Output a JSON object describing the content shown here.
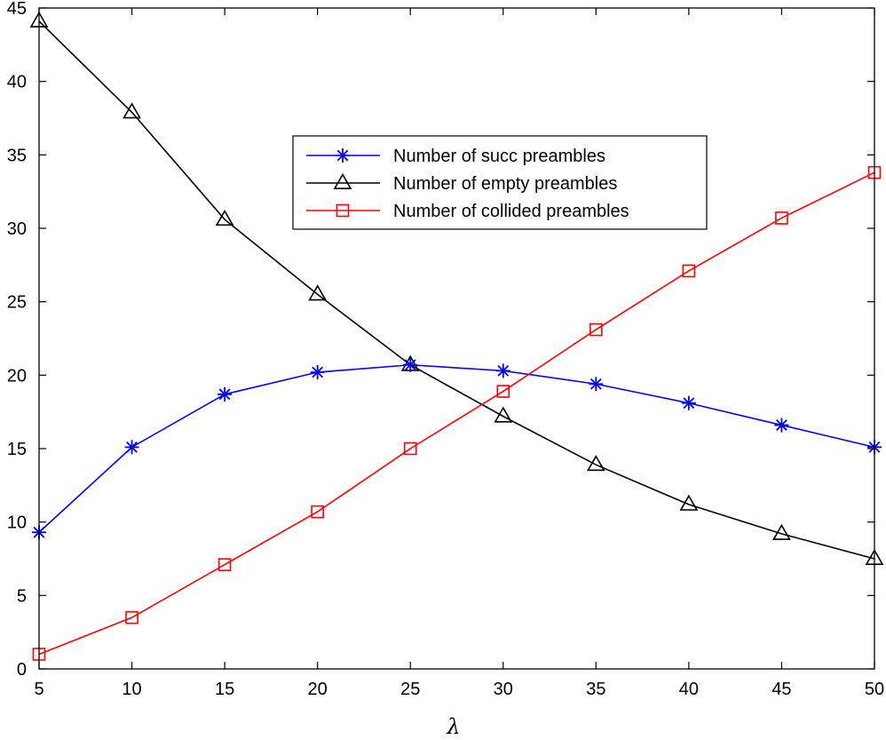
{
  "chart_data": {
    "type": "line",
    "title": "",
    "xlabel": "λ",
    "ylabel": "",
    "xlim": [
      5,
      50
    ],
    "ylim": [
      0,
      45
    ],
    "xticks": [
      5,
      10,
      15,
      20,
      25,
      30,
      35,
      40,
      45,
      50
    ],
    "yticks": [
      0,
      5,
      10,
      15,
      20,
      25,
      30,
      35,
      40,
      45
    ],
    "grid": false,
    "legend_position": "upper-center",
    "x": [
      5,
      10,
      15,
      20,
      25,
      30,
      35,
      40,
      45,
      50
    ],
    "series": [
      {
        "name": "Number of succ preambles",
        "color": "#0000ff",
        "marker": "asterisk",
        "values": [
          9.3,
          15.1,
          18.7,
          20.2,
          20.7,
          20.3,
          19.4,
          18.1,
          16.6,
          15.1
        ]
      },
      {
        "name": "Number of empty preambles",
        "color": "#000000",
        "marker": "triangle",
        "values": [
          44.1,
          37.9,
          30.6,
          25.5,
          20.7,
          17.2,
          13.9,
          11.2,
          9.2,
          7.5
        ]
      },
      {
        "name": "Number of collided preambles",
        "color": "#ff0000",
        "marker": "square",
        "values": [
          1.0,
          3.5,
          7.1,
          10.7,
          15.0,
          18.9,
          23.1,
          27.1,
          30.7,
          33.8
        ]
      }
    ]
  }
}
